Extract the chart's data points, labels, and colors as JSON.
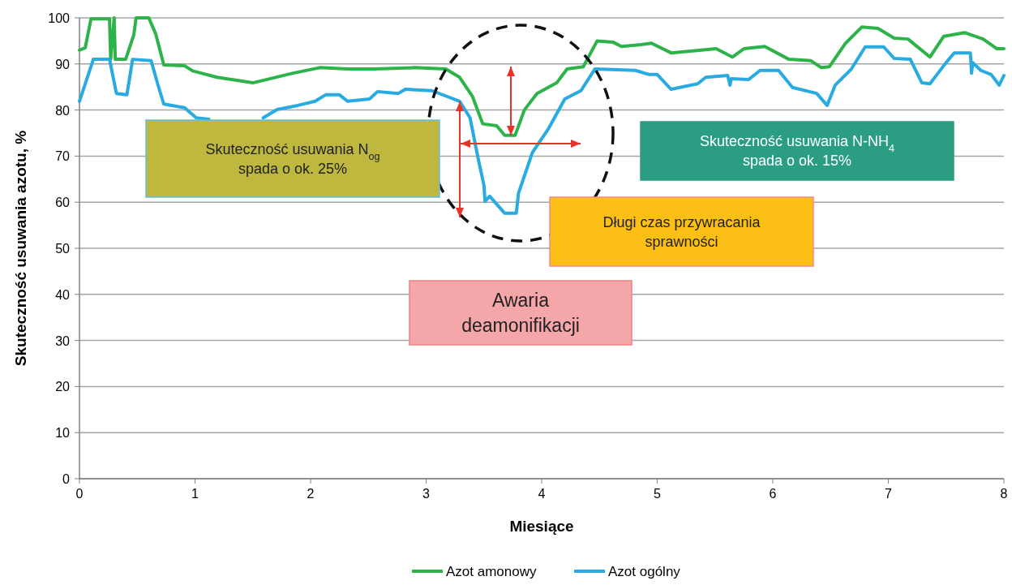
{
  "chart_data": {
    "type": "line",
    "xlabel": "Miesiące",
    "ylabel": "Skuteczność usuwania azotu, %",
    "xlim": [
      0,
      8
    ],
    "xticks": [
      0,
      1,
      2,
      3,
      4,
      5,
      6,
      7,
      8
    ],
    "ylim": [
      0,
      100
    ],
    "yticks": [
      0,
      10,
      20,
      30,
      40,
      50,
      60,
      70,
      80,
      90,
      100
    ],
    "grid": "y",
    "legend": "bottom",
    "marker": "none",
    "line_style": "solid",
    "series": [
      {
        "name": "Azot amonowy",
        "color": "#2db34a",
        "x": [
          0,
          0.05,
          0.07,
          0.1,
          0.26,
          0.27,
          0.3,
          0.31,
          0.4,
          0.47,
          0.49,
          0.6,
          0.66,
          0.73,
          0.91,
          0.98,
          1.19,
          1.5,
          1.85,
          2.08,
          2.32,
          2.55,
          2.9,
          3.17,
          3.29,
          3.4,
          3.49,
          3.61,
          3.68,
          3.77,
          3.85,
          3.96,
          4.13,
          4.22,
          4.36,
          4.48,
          4.62,
          4.69,
          4.86,
          4.95,
          5.12,
          5.51,
          5.65,
          5.75,
          5.93,
          6.14,
          6.33,
          6.42,
          6.49,
          6.63,
          6.77,
          6.91,
          7.05,
          7.17,
          7.36,
          7.48,
          7.66,
          7.82,
          7.94,
          8
        ],
        "values": [
          93,
          93.5,
          96,
          99.8,
          99.8,
          91,
          100,
          91,
          91,
          96.3,
          100,
          100,
          96.5,
          89.8,
          89.6,
          88.5,
          87.1,
          85.9,
          88,
          89.2,
          88.9,
          88.9,
          89.2,
          88.9,
          87.1,
          83,
          77,
          76.6,
          74.5,
          74.5,
          80,
          83.6,
          85.9,
          88.9,
          89.4,
          95,
          94.7,
          93.8,
          94.2,
          94.5,
          92.4,
          93.3,
          91.5,
          93.3,
          93.8,
          91,
          90.7,
          89.2,
          89.4,
          94.5,
          98,
          97.7,
          95.6,
          95.4,
          91.5,
          96,
          96.8,
          95.4,
          93.3,
          93.3
        ]
      },
      {
        "name": "Azot ogólny",
        "color": "#29abe2",
        "x": [
          0,
          0.12,
          0.26,
          0.32,
          0.41,
          0.46,
          0.62,
          0.68,
          0.73,
          0.91,
          1.01,
          1.12,
          1.3,
          1.59,
          1.71,
          1.89,
          2.04,
          2.13,
          2.25,
          2.32,
          2.51,
          2.58,
          2.76,
          2.82,
          3.05,
          3.29,
          3.38,
          3.45,
          3.5,
          3.51,
          3.55,
          3.68,
          3.78,
          3.8,
          3.92,
          4.06,
          4.2,
          4.34,
          4.46,
          4.81,
          4.93,
          5,
          5.12,
          5.35,
          5.42,
          5.61,
          5.63,
          5.64,
          5.79,
          5.89,
          6.05,
          6.17,
          6.38,
          6.47,
          6.54,
          6.68,
          6.8,
          6.96,
          7.05,
          7.19,
          7.29,
          7.36,
          7.5,
          7.57,
          7.71,
          7.72,
          7.73,
          7.8,
          7.89,
          7.96,
          8
        ],
        "values": [
          81.9,
          91,
          91,
          83.6,
          83.3,
          91,
          90.7,
          85.4,
          81.3,
          80.5,
          78.3,
          78,
          null,
          78.3,
          80.1,
          81,
          81.9,
          83.3,
          83.3,
          81.9,
          82.4,
          84,
          83.6,
          84.5,
          84.2,
          81.9,
          78.3,
          69.5,
          63.7,
          60.2,
          61.3,
          57.6,
          57.6,
          62,
          70.8,
          76,
          82.4,
          84.2,
          88.9,
          88.6,
          87.7,
          87.7,
          84.5,
          85.7,
          87.1,
          87.5,
          85.4,
          86.8,
          86.6,
          88.6,
          88.6,
          84.9,
          83.6,
          81,
          85.4,
          88.9,
          93.7,
          93.7,
          91.2,
          91,
          85.9,
          85.7,
          90.3,
          92.4,
          92.4,
          88,
          90.3,
          88.6,
          87.7,
          85.4,
          87.5
        ]
      }
    ],
    "annotations": [
      "Skuteczność usuwania N$_{og}$ spada o ok. 25%",
      "Skuteczność usuwania N-NH$_{4}$ spada o ok. 15%",
      "Długi czas przywracania sprawności",
      "Awaria deamonifikacji"
    ]
  }
}
